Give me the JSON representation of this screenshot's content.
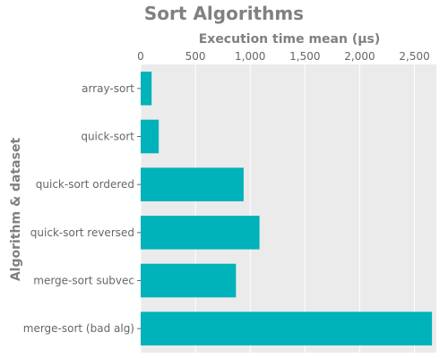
{
  "chart_data": {
    "type": "bar",
    "orientation": "horizontal",
    "title": "Sort Algorithms",
    "xlabel": "Execution time mean (µs)",
    "ylabel": "Algorithm & dataset",
    "xlim": [
      0,
      2700
    ],
    "x_ticks": [
      0,
      500,
      1000,
      1500,
      2000,
      2500
    ],
    "x_tick_labels": [
      "0",
      "500",
      "1,000",
      "1,500",
      "2,000",
      "2,500"
    ],
    "x_axis_position": "top",
    "categories": [
      "array-sort",
      "quick-sort",
      "quick-sort ordered",
      "quick-sort reversed",
      "merge-sort subvec",
      "merge-sort (bad alg)"
    ],
    "values": [
      100,
      165,
      940,
      1085,
      870,
      2660
    ],
    "grid": true,
    "colors": {
      "bar": "#00b2ba",
      "plot_bg": "#ebebeb",
      "grid": "#ffffff"
    }
  }
}
